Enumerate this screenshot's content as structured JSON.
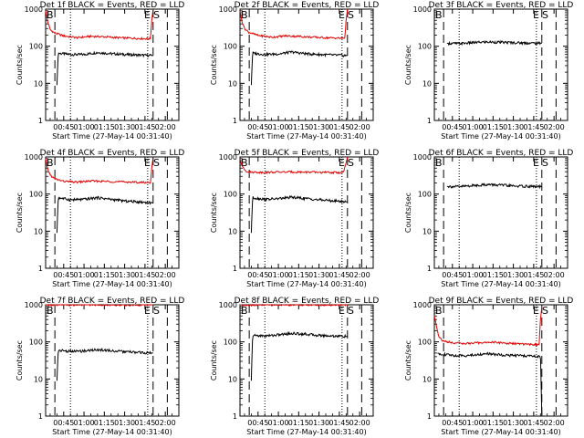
{
  "figure": {
    "background": "#ffffff",
    "event_color": "#000000",
    "lld_color": "#e00000"
  },
  "common": {
    "ylabel": "Counts/sec",
    "xlabel": "Start Time (27-May-14 00:31:40)",
    "ytick_labels": [
      "1",
      "10",
      "100",
      "1000"
    ],
    "xtick_labels": [
      "00:45",
      "01:00",
      "01:15",
      "01:30",
      "01:45",
      "02:00"
    ],
    "marker_b": "B",
    "marker_e": "E",
    "marker_s": "S"
  },
  "chart_data": [
    {
      "type": "line",
      "title": "Det 1f BLACK = Events, RED = LLD",
      "xlabel": "Start Time (27-May-14 00:31:40)",
      "ylabel": "Counts/sec",
      "yscale": "log",
      "ylim": [
        1,
        1000
      ],
      "xlim_minutes": [
        31.67,
        130
      ],
      "xticks": [
        "00:45",
        "01:00",
        "01:15",
        "01:30",
        "01:45",
        "02:00"
      ],
      "markers": {
        "B": 31.67,
        "E": 110.5,
        "S": 112.5
      },
      "dashed_lines": [
        38.5,
        111,
        121.5
      ],
      "dotted_lines": [
        50,
        107
      ],
      "series": [
        {
          "name": "Events",
          "color": "#000000",
          "start": 40,
          "end": 111,
          "points": [
            [
              40,
              9
            ],
            [
              41,
              65
            ],
            [
              50,
              60
            ],
            [
              60,
              60
            ],
            [
              70,
              68
            ],
            [
              80,
              63
            ],
            [
              90,
              60
            ],
            [
              100,
              58
            ],
            [
              110,
              56
            ]
          ]
        },
        {
          "name": "LLD",
          "color": "#e00000",
          "start": 31.67,
          "end": 111,
          "points": [
            [
              31.67,
              900
            ],
            [
              33,
              500
            ],
            [
              35,
              280
            ],
            [
              38,
              230
            ],
            [
              45,
              190
            ],
            [
              55,
              170
            ],
            [
              65,
              185
            ],
            [
              75,
              180
            ],
            [
              85,
              170
            ],
            [
              95,
              165
            ],
            [
              105,
              160
            ],
            [
              109,
              160
            ],
            [
              110,
              500
            ],
            [
              111,
              1000
            ]
          ]
        }
      ]
    },
    {
      "type": "line",
      "title": "Det 2f BLACK = Events, RED = LLD",
      "xlabel": "Start Time (27-May-14 00:31:40)",
      "ylabel": "Counts/sec",
      "yscale": "log",
      "ylim": [
        1,
        1000
      ],
      "xlim_minutes": [
        31.67,
        130
      ],
      "xticks": [
        "00:45",
        "01:00",
        "01:15",
        "01:30",
        "01:45",
        "02:00"
      ],
      "markers": {
        "B": 31.67,
        "E": 110.5,
        "S": 112.5
      },
      "dashed_lines": [
        38.5,
        111,
        121.5
      ],
      "dotted_lines": [
        50,
        107
      ],
      "series": [
        {
          "name": "Events",
          "color": "#000000",
          "start": 40,
          "end": 111,
          "points": [
            [
              40,
              9
            ],
            [
              41,
              65
            ],
            [
              50,
              60
            ],
            [
              60,
              62
            ],
            [
              70,
              70
            ],
            [
              80,
              63
            ],
            [
              90,
              60
            ],
            [
              100,
              58
            ],
            [
              110,
              56
            ]
          ]
        },
        {
          "name": "LLD",
          "color": "#e00000",
          "start": 31.67,
          "end": 111,
          "points": [
            [
              31.67,
              900
            ],
            [
              33,
              500
            ],
            [
              35,
              300
            ],
            [
              38,
              240
            ],
            [
              45,
              195
            ],
            [
              55,
              175
            ],
            [
              65,
              190
            ],
            [
              75,
              185
            ],
            [
              85,
              175
            ],
            [
              95,
              170
            ],
            [
              105,
              165
            ],
            [
              109,
              165
            ],
            [
              110,
              500
            ],
            [
              111,
              1000
            ]
          ]
        }
      ]
    },
    {
      "type": "line",
      "title": "Det 3f BLACK = Events, RED = LLD",
      "xlabel": "Start Time (27-May-14 00:31:40)",
      "ylabel": "Counts/sec",
      "yscale": "log",
      "ylim": [
        1,
        1000
      ],
      "xlim_minutes": [
        31.67,
        130
      ],
      "xticks": [
        "00:45",
        "01:00",
        "01:15",
        "01:30",
        "01:45",
        "02:00"
      ],
      "markers": {
        "B": 31.67,
        "E": 110.5,
        "S": 112.5
      },
      "dashed_lines": [
        38.5,
        111,
        121.5
      ],
      "dotted_lines": [
        50,
        107
      ],
      "series": [
        {
          "name": "Events",
          "color": "#000000",
          "start": 41,
          "end": 111,
          "points": [
            [
              41,
              120
            ],
            [
              50,
              118
            ],
            [
              60,
              125
            ],
            [
              70,
              130
            ],
            [
              80,
              128
            ],
            [
              90,
              125
            ],
            [
              100,
              122
            ],
            [
              110,
              120
            ]
          ]
        }
      ]
    },
    {
      "type": "line",
      "title": "Det 4f BLACK = Events, RED = LLD",
      "xlabel": "Start Time (27-May-14 00:31:40)",
      "ylabel": "Counts/sec",
      "yscale": "log",
      "ylim": [
        1,
        1000
      ],
      "xlim_minutes": [
        31.67,
        130
      ],
      "xticks": [
        "00:45",
        "01:00",
        "01:15",
        "01:30",
        "01:45",
        "02:00"
      ],
      "markers": {
        "B": 31.67,
        "E": 110.5,
        "S": 112.5
      },
      "dashed_lines": [
        38.5,
        111,
        121.5
      ],
      "dotted_lines": [
        50,
        107
      ],
      "series": [
        {
          "name": "Events",
          "color": "#000000",
          "start": 40,
          "end": 111,
          "points": [
            [
              40,
              9
            ],
            [
              41,
              80
            ],
            [
              50,
              70
            ],
            [
              60,
              72
            ],
            [
              70,
              80
            ],
            [
              80,
              72
            ],
            [
              90,
              65
            ],
            [
              100,
              62
            ],
            [
              110,
              58
            ]
          ]
        },
        {
          "name": "LLD",
          "color": "#e00000",
          "start": 31.67,
          "end": 111,
          "points": [
            [
              31.67,
              900
            ],
            [
              33,
              500
            ],
            [
              35,
              330
            ],
            [
              38,
              260
            ],
            [
              45,
              220
            ],
            [
              55,
              210
            ],
            [
              65,
              225
            ],
            [
              75,
              220
            ],
            [
              85,
              215
            ],
            [
              95,
              210
            ],
            [
              105,
              205
            ],
            [
              109,
              205
            ],
            [
              110,
              500
            ],
            [
              111,
              1000
            ]
          ]
        }
      ]
    },
    {
      "type": "line",
      "title": "Det 5f BLACK = Events, RED = LLD",
      "xlabel": "Start Time (27-May-14 00:31:40)",
      "ylabel": "Counts/sec",
      "yscale": "log",
      "ylim": [
        1,
        1000
      ],
      "xlim_minutes": [
        31.67,
        130
      ],
      "xticks": [
        "00:45",
        "01:00",
        "01:15",
        "01:30",
        "01:45",
        "02:00"
      ],
      "markers": {
        "B": 31.67,
        "E": 110.5,
        "S": 112.5
      },
      "dashed_lines": [
        38.5,
        111,
        121.5
      ],
      "dotted_lines": [
        50,
        107
      ],
      "series": [
        {
          "name": "Events",
          "color": "#000000",
          "start": 40,
          "end": 111,
          "points": [
            [
              40,
              9
            ],
            [
              41,
              80
            ],
            [
              50,
              72
            ],
            [
              60,
              75
            ],
            [
              70,
              82
            ],
            [
              80,
              76
            ],
            [
              90,
              70
            ],
            [
              100,
              66
            ],
            [
              110,
              62
            ]
          ]
        },
        {
          "name": "LLD",
          "color": "#e00000",
          "start": 31.67,
          "end": 111,
          "points": [
            [
              31.67,
              900
            ],
            [
              33,
              600
            ],
            [
              36,
              420
            ],
            [
              40,
              390
            ],
            [
              50,
              385
            ],
            [
              60,
              390
            ],
            [
              70,
              395
            ],
            [
              80,
              390
            ],
            [
              90,
              385
            ],
            [
              100,
              380
            ],
            [
              108,
              380
            ],
            [
              110,
              700
            ],
            [
              111,
              1000
            ]
          ]
        }
      ]
    },
    {
      "type": "line",
      "title": "Det 6f BLACK = Events, RED = LLD",
      "xlabel": "Start Time (27-May-14 00:31:40)",
      "ylabel": "Counts/sec",
      "yscale": "log",
      "ylim": [
        1,
        1000
      ],
      "xlim_minutes": [
        31.67,
        130
      ],
      "xticks": [
        "00:45",
        "01:00",
        "01:15",
        "01:30",
        "01:45",
        "02:00"
      ],
      "markers": {
        "B": 31.67,
        "E": 110.5,
        "S": 112.5
      },
      "dashed_lines": [
        38.5,
        111,
        121.5
      ],
      "dotted_lines": [
        50,
        107
      ],
      "series": [
        {
          "name": "Events",
          "color": "#000000",
          "start": 41,
          "end": 111,
          "points": [
            [
              41,
              160
            ],
            [
              50,
              158
            ],
            [
              60,
              170
            ],
            [
              70,
              180
            ],
            [
              80,
              175
            ],
            [
              90,
              165
            ],
            [
              100,
              162
            ],
            [
              110,
              158
            ]
          ]
        }
      ]
    },
    {
      "type": "line",
      "title": "Det 7f BLACK = Events, RED = LLD",
      "xlabel": "Start Time (27-May-14 00:31:40)",
      "ylabel": "Counts/sec",
      "yscale": "log",
      "ylim": [
        1,
        1000
      ],
      "xlim_minutes": [
        31.67,
        130
      ],
      "xticks": [
        "00:45",
        "01:00",
        "01:15",
        "01:30",
        "01:45",
        "02:00"
      ],
      "markers": {
        "B": 31.67,
        "E": 110.5,
        "S": 112.5
      },
      "dashed_lines": [
        38.5,
        111,
        121.5
      ],
      "dotted_lines": [
        50,
        107
      ],
      "series": [
        {
          "name": "Events",
          "color": "#000000",
          "start": 40,
          "end": 111,
          "points": [
            [
              40,
              9
            ],
            [
              41,
              60
            ],
            [
              50,
              55
            ],
            [
              60,
              57
            ],
            [
              70,
              62
            ],
            [
              80,
              58
            ],
            [
              90,
              54
            ],
            [
              100,
              52
            ],
            [
              110,
              50
            ]
          ]
        },
        {
          "name": "LLD",
          "color": "#e00000",
          "start": 31.67,
          "end": 111,
          "points": [
            [
              31.67,
              1000
            ],
            [
              40,
              980
            ],
            [
              60,
              1000
            ],
            [
              80,
              990
            ],
            [
              100,
              985
            ],
            [
              111,
              1000
            ]
          ]
        }
      ]
    },
    {
      "type": "line",
      "title": "Det 8f BLACK = Events, RED = LLD",
      "xlabel": "Start Time (27-May-14 00:31:40)",
      "ylabel": "Counts/sec",
      "yscale": "log",
      "ylim": [
        1,
        1000
      ],
      "xlim_minutes": [
        31.67,
        130
      ],
      "xticks": [
        "00:45",
        "01:00",
        "01:15",
        "01:30",
        "01:45",
        "02:00"
      ],
      "markers": {
        "B": 31.67,
        "E": 110.5,
        "S": 112.5
      },
      "dashed_lines": [
        38.5,
        111,
        121.5
      ],
      "dotted_lines": [
        50,
        107
      ],
      "series": [
        {
          "name": "Events",
          "color": "#000000",
          "start": 40,
          "end": 111,
          "points": [
            [
              40,
              9
            ],
            [
              41,
              150
            ],
            [
              50,
              145
            ],
            [
              60,
              155
            ],
            [
              70,
              170
            ],
            [
              80,
              162
            ],
            [
              90,
              150
            ],
            [
              100,
              145
            ],
            [
              110,
              140
            ]
          ]
        },
        {
          "name": "LLD",
          "color": "#e00000",
          "start": 31.67,
          "end": 111,
          "points": [
            [
              31.67,
              1000
            ],
            [
              40,
              990
            ],
            [
              60,
              1000
            ],
            [
              80,
              995
            ],
            [
              100,
              990
            ],
            [
              111,
              1000
            ]
          ]
        }
      ]
    },
    {
      "type": "line",
      "title": "Det 9f BLACK = Events, RED = LLD",
      "xlabel": "Start Time (27-May-14 00:31:40)",
      "ylabel": "Counts/sec",
      "yscale": "log",
      "ylim": [
        1,
        1000
      ],
      "xlim_minutes": [
        31.67,
        130
      ],
      "xticks": [
        "00:45",
        "01:00",
        "01:15",
        "01:30",
        "01:45",
        "02:00"
      ],
      "markers": {
        "B": 31.67,
        "E": 110.5,
        "S": 112.5
      },
      "dashed_lines": [
        38.5,
        111,
        121.5
      ],
      "dotted_lines": [
        50,
        107
      ],
      "series": [
        {
          "name": "Events",
          "color": "#000000",
          "start": 34,
          "end": 111,
          "points": [
            [
              34,
              50
            ],
            [
              40,
              45
            ],
            [
              50,
              42
            ],
            [
              60,
              44
            ],
            [
              70,
              48
            ],
            [
              80,
              45
            ],
            [
              90,
              43
            ],
            [
              100,
              42
            ],
            [
              110,
              40
            ],
            [
              111,
              1
            ]
          ]
        },
        {
          "name": "LLD",
          "color": "#e00000",
          "start": 31.67,
          "end": 111,
          "points": [
            [
              31.67,
              500
            ],
            [
              33,
              300
            ],
            [
              35,
              140
            ],
            [
              38,
              105
            ],
            [
              45,
              95
            ],
            [
              55,
              90
            ],
            [
              65,
              95
            ],
            [
              75,
              98
            ],
            [
              85,
              92
            ],
            [
              95,
              88
            ],
            [
              105,
              85
            ],
            [
              109,
              85
            ],
            [
              110,
              400
            ],
            [
              111,
              900
            ]
          ]
        }
      ]
    }
  ]
}
